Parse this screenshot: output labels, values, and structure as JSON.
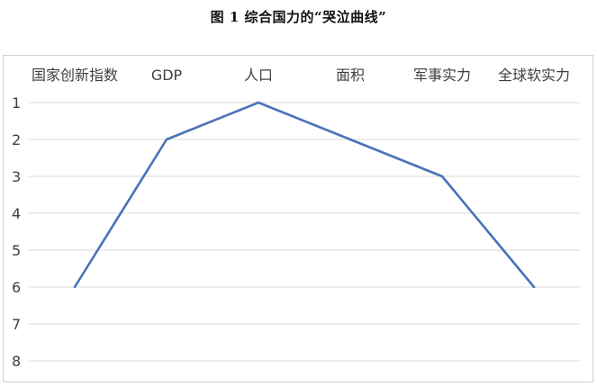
{
  "figure": {
    "title": "图 1  综合国力的“哭泣曲线”"
  },
  "chart_data": {
    "type": "line",
    "title": "图 1  综合国力的“哭泣曲线”",
    "categories": [
      "国家创新指数",
      "GDP",
      "人口",
      "面积",
      "军事实力",
      "全球软实力"
    ],
    "series": [
      {
        "values": [
          6,
          2,
          1,
          2,
          3,
          6
        ]
      }
    ],
    "yticks": [
      1,
      2,
      3,
      4,
      5,
      6,
      7,
      8
    ],
    "ylim": [
      1,
      8
    ],
    "y_reversed": true,
    "grid": true,
    "xaxis_position": "top",
    "legend": "none",
    "colors": {
      "series": "#4a72b8",
      "grid": "#d9d9d9",
      "text": "#404040",
      "border": "#cfcfcf"
    }
  }
}
